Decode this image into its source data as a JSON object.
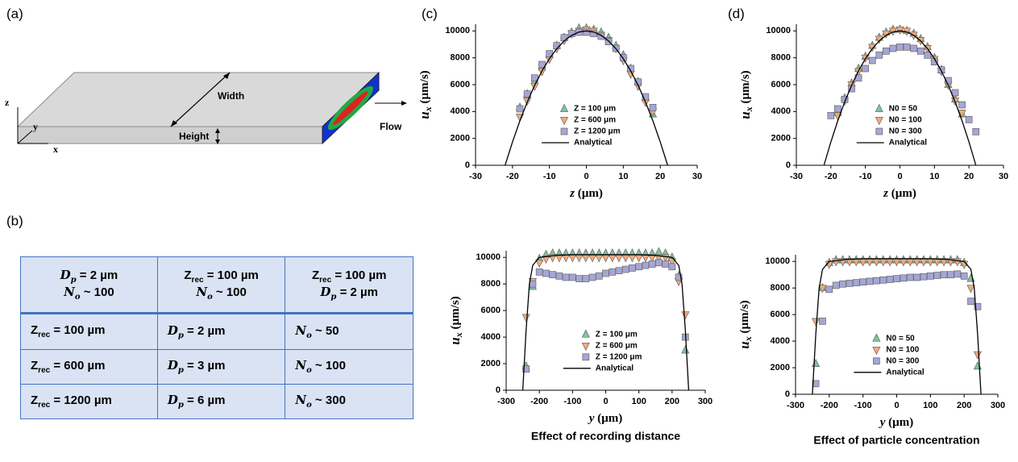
{
  "panels": {
    "a": "(a)",
    "b": "(b)",
    "c": "(c)",
    "d": "(d)"
  },
  "diagram": {
    "width": "Width",
    "height": "Height",
    "flow": "Flow",
    "axes": [
      "z",
      "y",
      "x"
    ]
  },
  "table": {
    "header": [
      [
        {
          "base": "D",
          "sub": "p",
          "text": " = 2 µm",
          "math": true
        },
        {
          "base": "N",
          "sub": "o",
          "text": " ~ 100",
          "math": true
        }
      ],
      [
        {
          "base": "Z",
          "sub": "rec",
          "text": " = 100 µm",
          "math": false
        },
        {
          "base": "N",
          "sub": "o",
          "text": " ~ 100",
          "math": true
        }
      ],
      [
        {
          "base": "Z",
          "sub": "rec",
          "text": " = 100 µm",
          "math": false
        },
        {
          "base": "D",
          "sub": "p",
          "text": " = 2 µm",
          "math": true
        }
      ]
    ],
    "rows": [
      [
        [
          {
            "base": "Z",
            "sub": "rec",
            "text": " = 100 µm",
            "math": false
          }
        ],
        [
          {
            "base": "D",
            "sub": "p",
            "text": " = 2 µm",
            "math": true
          }
        ],
        [
          {
            "base": "N",
            "sub": "o",
            "text": " ~ 50",
            "math": true
          }
        ]
      ],
      [
        [
          {
            "base": "Z",
            "sub": "rec",
            "text": " = 600 µm",
            "math": false
          }
        ],
        [
          {
            "base": "D",
            "sub": "p",
            "text": " = 3 µm",
            "math": true
          }
        ],
        [
          {
            "base": "N",
            "sub": "o",
            "text": " ~ 100",
            "math": true
          }
        ]
      ],
      [
        [
          {
            "base": "Z",
            "sub": "rec",
            "text": " = 1200 µm",
            "math": false
          }
        ],
        [
          {
            "base": "D",
            "sub": "p",
            "text": " = 6 µm",
            "math": true
          }
        ],
        [
          {
            "base": "N",
            "sub": "o",
            "text": " ~ 300",
            "math": true
          }
        ]
      ]
    ]
  },
  "chart_data": [
    {
      "type": "scatter",
      "xlabel": {
        "symbol": "z",
        "unit": " (µm)"
      },
      "ylabel": {
        "symbol": "u",
        "subscript": "x",
        "unit": " (µm/s)"
      },
      "xlim": [
        -30,
        30
      ],
      "xticks": [
        -30,
        -20,
        -10,
        0,
        10,
        20,
        30
      ],
      "ylim": [
        0,
        10500
      ],
      "yticks": [
        0,
        2000,
        4000,
        6000,
        8000,
        10000
      ],
      "legend": "lower center",
      "series": [
        {
          "name": "Z = 100 μm",
          "marker": "triangle-up",
          "color": "#7fc4a0",
          "x": [
            -18,
            -16,
            -14,
            -12,
            -10,
            -8,
            -6,
            -4,
            -2,
            0,
            2,
            4,
            6,
            8,
            10,
            12,
            14,
            16,
            18
          ],
          "values": [
            4300,
            5300,
            6300,
            7300,
            8200,
            8900,
            9500,
            9900,
            10200,
            10200,
            10100,
            9900,
            9500,
            8900,
            8200,
            7200,
            6200,
            5000,
            3800
          ]
        },
        {
          "name": "Z = 600 μm",
          "marker": "triangle-down",
          "color": "#f4a97a",
          "x": [
            -18,
            -16,
            -14,
            -12,
            -10,
            -8,
            -6,
            -4,
            -2,
            0,
            2,
            4,
            6,
            8,
            10,
            12,
            14,
            16,
            18
          ],
          "values": [
            3600,
            4800,
            5900,
            7000,
            7900,
            8700,
            9300,
            9800,
            10000,
            10100,
            10000,
            9700,
            9300,
            8700,
            7800,
            6800,
            5900,
            4700,
            4000
          ]
        },
        {
          "name": "Z = 1200 μm",
          "marker": "square",
          "color": "#a6a6d6",
          "x": [
            -18,
            -16,
            -14,
            -12,
            -10,
            -8,
            -6,
            -4,
            -2,
            0,
            2,
            4,
            6,
            8,
            10,
            12,
            14,
            16,
            18
          ],
          "values": [
            4200,
            5300,
            6500,
            7500,
            8300,
            8900,
            9500,
            9800,
            9900,
            9900,
            9800,
            9600,
            9200,
            8700,
            8000,
            7200,
            6200,
            5100,
            4300
          ]
        },
        {
          "name": "Analytical",
          "marker": "line",
          "color": "#000000",
          "x": [
            -22,
            -20,
            -18,
            -16,
            -14,
            -12,
            -10,
            -8,
            -6,
            -4,
            -2,
            0,
            2,
            4,
            6,
            8,
            10,
            12,
            14,
            16,
            18,
            20,
            22
          ],
          "values": [
            0,
            1736,
            3306,
            4711,
            5950,
            7025,
            7934,
            8678,
            9256,
            9669,
            9917,
            10000,
            9917,
            9669,
            9256,
            8678,
            7934,
            7025,
            5950,
            4711,
            3306,
            1736,
            0
          ]
        }
      ]
    },
    {
      "type": "scatter",
      "xlabel": {
        "symbol": "z",
        "unit": " (µm)"
      },
      "ylabel": {
        "symbol": "u",
        "subscript": "x",
        "unit": " (µm/s)"
      },
      "xlim": [
        -30,
        30
      ],
      "xticks": [
        -30,
        -20,
        -10,
        0,
        10,
        20,
        30
      ],
      "ylim": [
        0,
        10500
      ],
      "yticks": [
        0,
        2000,
        4000,
        6000,
        8000,
        10000
      ],
      "legend": "lower center",
      "series": [
        {
          "name": "N0 = 50",
          "marker": "triangle-up",
          "color": "#7fc4a0",
          "x": [
            -18,
            -16,
            -14,
            -12,
            -10,
            -8,
            -6,
            -4,
            -2,
            0,
            2,
            4,
            6,
            8,
            10,
            12,
            14,
            16,
            18
          ],
          "values": [
            3900,
            5000,
            6100,
            7200,
            8100,
            8900,
            9500,
            9900,
            10100,
            10100,
            10000,
            9800,
            9400,
            8800,
            8000,
            7100,
            6000,
            4900,
            3800
          ]
        },
        {
          "name": "N0 = 100",
          "marker": "triangle-down",
          "color": "#f4a97a",
          "x": [
            -18,
            -16,
            -14,
            -12,
            -10,
            -8,
            -6,
            -4,
            -2,
            0,
            2,
            4,
            6,
            8,
            10,
            12,
            14,
            16,
            18
          ],
          "values": [
            3700,
            4800,
            6000,
            7000,
            8000,
            8800,
            9400,
            9800,
            10000,
            10100,
            10000,
            9700,
            9300,
            8700,
            7900,
            7000,
            6000,
            4800,
            3900
          ]
        },
        {
          "name": "N0 = 300",
          "marker": "square",
          "color": "#a6a6d6",
          "x": [
            -20,
            -18,
            -16,
            -14,
            -12,
            -10,
            -8,
            -6,
            -4,
            -2,
            0,
            2,
            4,
            6,
            8,
            10,
            12,
            14,
            16,
            18,
            20,
            22
          ],
          "values": [
            3700,
            4200,
            4900,
            5700,
            6500,
            7200,
            7800,
            8200,
            8500,
            8700,
            8800,
            8800,
            8700,
            8500,
            8200,
            7700,
            7100,
            6300,
            5400,
            4500,
            3400,
            2500
          ]
        },
        {
          "name": "Analytical",
          "marker": "line",
          "color": "#000000",
          "x": [
            -22,
            -20,
            -18,
            -16,
            -14,
            -12,
            -10,
            -8,
            -6,
            -4,
            -2,
            0,
            2,
            4,
            6,
            8,
            10,
            12,
            14,
            16,
            18,
            20,
            22
          ],
          "values": [
            0,
            1736,
            3306,
            4711,
            5950,
            7025,
            7934,
            8678,
            9256,
            9669,
            9917,
            10000,
            9917,
            9669,
            9256,
            8678,
            7934,
            7025,
            5950,
            4711,
            3306,
            1736,
            0
          ]
        }
      ]
    },
    {
      "type": "scatter",
      "xlabel": {
        "symbol": "y",
        "unit": " (µm)"
      },
      "ylabel": {
        "symbol": "u",
        "subscript": "x",
        "unit": " (µm/s)"
      },
      "caption": "Effect of recording distance",
      "xlim": [
        -300,
        300
      ],
      "xticks": [
        -300,
        -200,
        -100,
        0,
        100,
        200,
        300
      ],
      "ylim": [
        0,
        10500
      ],
      "yticks": [
        0,
        2000,
        4000,
        6000,
        8000,
        10000
      ],
      "legend": "lower center",
      "series": [
        {
          "name": "Z = 100 μm",
          "marker": "triangle-up",
          "color": "#7fc4a0",
          "x": [
            -240,
            -220,
            -200,
            -180,
            -160,
            -140,
            -120,
            -100,
            -80,
            -60,
            -40,
            -20,
            0,
            20,
            40,
            60,
            80,
            100,
            120,
            140,
            160,
            180,
            200,
            220,
            240
          ],
          "values": [
            1800,
            7800,
            9900,
            10200,
            10300,
            10300,
            10300,
            10300,
            10300,
            10300,
            10300,
            10300,
            10300,
            10300,
            10300,
            10300,
            10300,
            10300,
            10300,
            10300,
            10400,
            10300,
            10000,
            8600,
            3000
          ]
        },
        {
          "name": "Z = 600 μm",
          "marker": "triangle-down",
          "color": "#f4a97a",
          "x": [
            -240,
            -220,
            -200,
            -180,
            -160,
            -140,
            -120,
            -100,
            -80,
            -60,
            -40,
            -20,
            0,
            20,
            40,
            60,
            80,
            100,
            120,
            140,
            160,
            180,
            200,
            220,
            240
          ],
          "values": [
            5500,
            8200,
            9600,
            9900,
            10000,
            10000,
            10000,
            10000,
            10000,
            10000,
            10000,
            10000,
            10000,
            10000,
            10000,
            10000,
            10000,
            10000,
            10000,
            10000,
            10000,
            10000,
            9700,
            8200,
            5700
          ]
        },
        {
          "name": "Z = 1200 μm",
          "marker": "square",
          "color": "#a6a6d6",
          "x": [
            -240,
            -220,
            -200,
            -180,
            -160,
            -140,
            -120,
            -100,
            -80,
            -60,
            -40,
            -20,
            0,
            20,
            40,
            60,
            80,
            100,
            120,
            140,
            160,
            180,
            200,
            220,
            240
          ],
          "values": [
            1600,
            8000,
            8900,
            8800,
            8700,
            8600,
            8500,
            8500,
            8400,
            8400,
            8500,
            8600,
            8800,
            8900,
            9000,
            9100,
            9200,
            9300,
            9400,
            9500,
            9600,
            9500,
            9300,
            8500,
            4000
          ]
        },
        {
          "name": "Analytical",
          "marker": "line",
          "color": "#000000",
          "x": [
            -250,
            -240,
            -230,
            -220,
            -200,
            -150,
            -100,
            0,
            100,
            150,
            200,
            220,
            230,
            240,
            250
          ],
          "values": [
            0,
            4500,
            8000,
            9400,
            10000,
            10150,
            10200,
            10200,
            10200,
            10150,
            10000,
            9400,
            8000,
            4500,
            0
          ]
        }
      ]
    },
    {
      "type": "scatter",
      "xlabel": {
        "symbol": "y",
        "unit": " (µm)"
      },
      "ylabel": {
        "symbol": "u",
        "subscript": "x",
        "unit": " (µm/s)"
      },
      "caption": "Effect of particle concentration",
      "xlim": [
        -300,
        300
      ],
      "xticks": [
        -300,
        -200,
        -100,
        0,
        100,
        200,
        300
      ],
      "ylim": [
        0,
        10500
      ],
      "yticks": [
        0,
        2000,
        4000,
        6000,
        8000,
        10000
      ],
      "legend": "lower center",
      "series": [
        {
          "name": "N0 = 50",
          "marker": "triangle-up",
          "color": "#7fc4a0",
          "x": [
            -240,
            -220,
            -200,
            -180,
            -160,
            -140,
            -120,
            -100,
            -80,
            -60,
            -40,
            -20,
            0,
            20,
            40,
            60,
            80,
            100,
            120,
            140,
            160,
            180,
            200,
            220,
            240
          ],
          "values": [
            2300,
            8000,
            9900,
            10100,
            10100,
            10100,
            10100,
            10100,
            10100,
            10100,
            10100,
            10100,
            10100,
            10100,
            10100,
            10100,
            10100,
            10100,
            10100,
            10100,
            10100,
            10100,
            9900,
            8700,
            2100
          ]
        },
        {
          "name": "N0 = 100",
          "marker": "triangle-down",
          "color": "#f4a97a",
          "x": [
            -240,
            -220,
            -200,
            -180,
            -160,
            -140,
            -120,
            -100,
            -80,
            -60,
            -40,
            -20,
            0,
            20,
            40,
            60,
            80,
            100,
            120,
            140,
            160,
            180,
            200,
            220,
            240
          ],
          "values": [
            5500,
            8000,
            9800,
            10000,
            10000,
            10000,
            10000,
            10000,
            10000,
            10000,
            10000,
            10000,
            10000,
            10000,
            10000,
            10000,
            10000,
            10000,
            10000,
            10000,
            10000,
            10000,
            9800,
            8000,
            3000
          ]
        },
        {
          "name": "N0 = 300",
          "marker": "square",
          "color": "#a6a6d6",
          "x": [
            -240,
            -220,
            -200,
            -180,
            -160,
            -140,
            -120,
            -100,
            -80,
            -60,
            -40,
            -20,
            0,
            20,
            40,
            60,
            80,
            100,
            120,
            140,
            160,
            180,
            200,
            220,
            240
          ],
          "values": [
            800,
            5500,
            7900,
            8200,
            8300,
            8350,
            8400,
            8450,
            8500,
            8550,
            8600,
            8650,
            8700,
            8750,
            8800,
            8800,
            8850,
            8900,
            8950,
            9000,
            9000,
            9050,
            8900,
            7000,
            6600
          ]
        },
        {
          "name": "Analytical",
          "marker": "line",
          "color": "#000000",
          "x": [
            -250,
            -240,
            -230,
            -220,
            -200,
            -150,
            -100,
            0,
            100,
            150,
            200,
            220,
            230,
            240,
            250
          ],
          "values": [
            0,
            4500,
            8000,
            9400,
            10000,
            10150,
            10200,
            10200,
            10200,
            10150,
            10000,
            9400,
            8000,
            4500,
            0
          ]
        }
      ]
    }
  ]
}
